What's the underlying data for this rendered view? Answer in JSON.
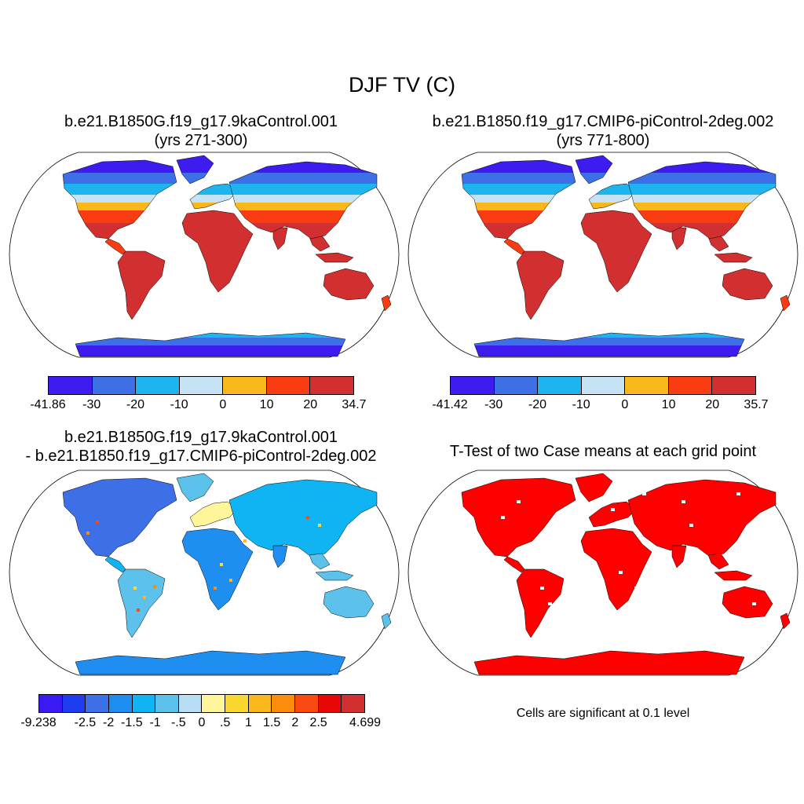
{
  "figure": {
    "title": "DJF TV (C)",
    "footnote": "Cells are significant at 0.1 level"
  },
  "panels": [
    {
      "title_line1": "b.e21.B1850G.f19_g17.9kaControl.001",
      "title_line2": "(yrs 271-300)",
      "colorbar": {
        "colors": [
          "#3e1cf0",
          "#3d6fe6",
          "#1db4f0",
          "#c6e2f5",
          "#fbb81c",
          "#fa3c12",
          "#d23030"
        ],
        "labels": [
          "-41.86",
          "-30",
          "-20",
          "-10",
          "0",
          "10",
          "20",
          "34.7"
        ]
      }
    },
    {
      "title_line1": "b.e21.B1850.f19_g17.CMIP6-piControl-2deg.002",
      "title_line2": "(yrs 771-800)",
      "colorbar": {
        "colors": [
          "#3e1cf0",
          "#3d6fe6",
          "#1db4f0",
          "#c6e2f5",
          "#fbb81c",
          "#fa3c12",
          "#d23030"
        ],
        "labels": [
          "-41.42",
          "-30",
          "-20",
          "-10",
          "0",
          "10",
          "20",
          "35.7"
        ]
      }
    },
    {
      "title_line1": "b.e21.B1850G.f19_g17.9kaControl.001",
      "title_line2": "- b.e21.B1850.f19_g17.CMIP6-piControl-2deg.002",
      "colorbar": {
        "colors": [
          "#3a1af2",
          "#1e3cf0",
          "#3d6fe6",
          "#1e8ef0",
          "#11b4f2",
          "#5cc2ec",
          "#b8def5",
          "#fff59a",
          "#fbd830",
          "#fbb81c",
          "#fb8c0e",
          "#fa4a12",
          "#e80808",
          "#d23030"
        ],
        "labels": [
          "-9.238",
          "-2.5",
          "-2",
          "-1.5",
          "-1",
          "-.5",
          "0",
          ".5",
          "1",
          "1.5",
          "2",
          "2.5",
          "4.699"
        ]
      }
    },
    {
      "title_line1": "T-Test of two Case means at each grid point"
    }
  ]
}
